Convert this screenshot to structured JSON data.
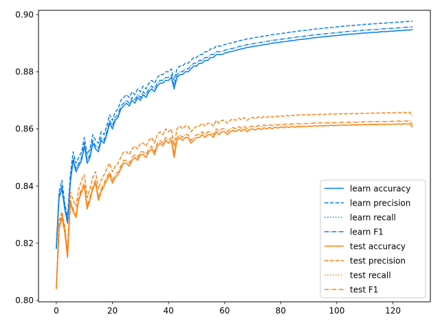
{
  "chart_data": {
    "type": "line",
    "title": "",
    "xlabel": "",
    "ylabel": "",
    "xlim": [
      -6.35,
      133.35
    ],
    "ylim": [
      0.7995,
      0.9015
    ],
    "xticks": [
      0,
      20,
      40,
      60,
      80,
      100,
      120
    ],
    "yticks": [
      0.8,
      0.82,
      0.84,
      0.86,
      0.88,
      0.9
    ],
    "xtick_labels": [
      "0",
      "20",
      "40",
      "60",
      "80",
      "100",
      "120"
    ],
    "ytick_labels": [
      "0.80",
      "0.82",
      "0.84",
      "0.86",
      "0.88",
      "0.90"
    ],
    "grid": false,
    "legend_position": "lower-right",
    "x": {
      "start": 0,
      "end": 127,
      "step": 1
    },
    "series": [
      {
        "name": "learn accuracy",
        "color": "#0a7ff0",
        "dash": "solid",
        "values": [
          0.818,
          0.836,
          0.839,
          0.832,
          0.827,
          0.841,
          0.849,
          0.845,
          0.847,
          0.849,
          0.854,
          0.848,
          0.85,
          0.855,
          0.853,
          0.852,
          0.856,
          0.855,
          0.858,
          0.862,
          0.86,
          0.863,
          0.864,
          0.867,
          0.868,
          0.869,
          0.868,
          0.87,
          0.869,
          0.871,
          0.87,
          0.872,
          0.871,
          0.873,
          0.874,
          0.873,
          0.875,
          0.876,
          0.876,
          0.877,
          0.877,
          0.878,
          0.874,
          0.878,
          0.879,
          0.879,
          0.88,
          0.88,
          0.881,
          0.882,
          0.882,
          0.883,
          0.883,
          0.884,
          0.884,
          0.885,
          0.885,
          0.886,
          0.886,
          0.886,
          0.8865,
          0.8868,
          0.887,
          0.8872,
          0.8875,
          0.8878,
          0.888,
          0.8882,
          0.8885,
          0.8886,
          0.8888,
          0.889,
          0.8891,
          0.8893,
          0.8895,
          0.8896,
          0.8898,
          0.89,
          0.8901,
          0.8902,
          0.8904,
          0.8905,
          0.8906,
          0.8908,
          0.8909,
          0.891,
          0.8912,
          0.8913,
          0.8914,
          0.8915,
          0.8916,
          0.8918,
          0.8919,
          0.892,
          0.8921,
          0.8922,
          0.8923,
          0.8924,
          0.8925,
          0.8926,
          0.8927,
          0.8928,
          0.8929,
          0.893,
          0.8931,
          0.8932,
          0.8932,
          0.8933,
          0.8934,
          0.8935,
          0.8936,
          0.8936,
          0.8937,
          0.8938,
          0.8938,
          0.8939,
          0.894,
          0.894,
          0.8941,
          0.8942,
          0.8942,
          0.8943,
          0.8944,
          0.8944,
          0.8945,
          0.8946,
          0.8946,
          0.8947
        ]
      },
      {
        "name": "learn precision",
        "color": "#0a7ff0",
        "dash": "dashed",
        "values": [
          0.819,
          0.838,
          0.842,
          0.834,
          0.829,
          0.844,
          0.852,
          0.848,
          0.85,
          0.852,
          0.857,
          0.851,
          0.853,
          0.858,
          0.856,
          0.855,
          0.859,
          0.858,
          0.861,
          0.865,
          0.863,
          0.866,
          0.867,
          0.87,
          0.871,
          0.872,
          0.871,
          0.873,
          0.872,
          0.874,
          0.873,
          0.875,
          0.874,
          0.876,
          0.877,
          0.876,
          0.878,
          0.879,
          0.879,
          0.88,
          0.88,
          0.881,
          0.877,
          0.881,
          0.882,
          0.882,
          0.883,
          0.883,
          0.884,
          0.885,
          0.885,
          0.886,
          0.886,
          0.887,
          0.887,
          0.888,
          0.888,
          0.889,
          0.889,
          0.889,
          0.8895,
          0.8898,
          0.89,
          0.8902,
          0.8905,
          0.8908,
          0.891,
          0.8912,
          0.8915,
          0.8916,
          0.8918,
          0.892,
          0.8921,
          0.8923,
          0.8925,
          0.8926,
          0.8928,
          0.893,
          0.8931,
          0.8932,
          0.8934,
          0.8935,
          0.8936,
          0.8938,
          0.8939,
          0.894,
          0.8942,
          0.8943,
          0.8944,
          0.8945,
          0.8946,
          0.8948,
          0.8949,
          0.895,
          0.8951,
          0.8952,
          0.8953,
          0.8954,
          0.8955,
          0.8956,
          0.8957,
          0.8958,
          0.8959,
          0.896,
          0.8961,
          0.8962,
          0.8962,
          0.8963,
          0.8964,
          0.8965,
          0.8966,
          0.8966,
          0.8967,
          0.8968,
          0.8968,
          0.8969,
          0.897,
          0.897,
          0.8971,
          0.8972,
          0.8972,
          0.8973,
          0.8974,
          0.8974,
          0.8975,
          0.8976,
          0.8976,
          0.8977
        ]
      },
      {
        "name": "learn recall",
        "color": "#0a7ff0",
        "dash": "dotted",
        "values": [
          0.818,
          0.836,
          0.839,
          0.832,
          0.827,
          0.841,
          0.849,
          0.845,
          0.847,
          0.849,
          0.854,
          0.848,
          0.85,
          0.855,
          0.853,
          0.852,
          0.856,
          0.855,
          0.858,
          0.862,
          0.86,
          0.863,
          0.864,
          0.867,
          0.868,
          0.869,
          0.868,
          0.87,
          0.869,
          0.871,
          0.87,
          0.872,
          0.871,
          0.873,
          0.874,
          0.873,
          0.875,
          0.876,
          0.876,
          0.877,
          0.877,
          0.878,
          0.874,
          0.878,
          0.879,
          0.879,
          0.88,
          0.88,
          0.881,
          0.882,
          0.882,
          0.883,
          0.883,
          0.884,
          0.884,
          0.885,
          0.885,
          0.886,
          0.886,
          0.886,
          0.8865,
          0.8868,
          0.887,
          0.8872,
          0.8875,
          0.8878,
          0.888,
          0.8882,
          0.8885,
          0.8886,
          0.8888,
          0.889,
          0.8891,
          0.8893,
          0.8895,
          0.8896,
          0.8898,
          0.89,
          0.8901,
          0.8902,
          0.8904,
          0.8905,
          0.8906,
          0.8908,
          0.8909,
          0.891,
          0.8912,
          0.8913,
          0.8914,
          0.8915,
          0.8916,
          0.8918,
          0.8919,
          0.892,
          0.8921,
          0.8922,
          0.8923,
          0.8924,
          0.8925,
          0.8926,
          0.8927,
          0.8928,
          0.8929,
          0.893,
          0.8931,
          0.8932,
          0.8932,
          0.8933,
          0.8934,
          0.8935,
          0.8936,
          0.8936,
          0.8937,
          0.8938,
          0.8938,
          0.8939,
          0.894,
          0.894,
          0.8941,
          0.8942,
          0.8942,
          0.8943,
          0.8944,
          0.8944,
          0.8945,
          0.8946,
          0.8946,
          0.8947
        ]
      },
      {
        "name": "learn F1",
        "color": "#0a7ff0",
        "dash": "dashdot",
        "values": [
          0.8185,
          0.837,
          0.84,
          0.833,
          0.828,
          0.842,
          0.85,
          0.846,
          0.848,
          0.85,
          0.855,
          0.849,
          0.851,
          0.856,
          0.854,
          0.853,
          0.857,
          0.856,
          0.859,
          0.863,
          0.861,
          0.864,
          0.865,
          0.868,
          0.869,
          0.87,
          0.869,
          0.871,
          0.87,
          0.872,
          0.871,
          0.873,
          0.872,
          0.874,
          0.875,
          0.874,
          0.876,
          0.877,
          0.877,
          0.878,
          0.878,
          0.879,
          0.875,
          0.879,
          0.88,
          0.88,
          0.881,
          0.881,
          0.882,
          0.883,
          0.883,
          0.884,
          0.884,
          0.885,
          0.885,
          0.886,
          0.886,
          0.887,
          0.887,
          0.887,
          0.8875,
          0.8878,
          0.888,
          0.8882,
          0.8885,
          0.8888,
          0.889,
          0.8892,
          0.8895,
          0.8896,
          0.8898,
          0.89,
          0.8901,
          0.8903,
          0.8905,
          0.8906,
          0.8908,
          0.891,
          0.8911,
          0.8912,
          0.8914,
          0.8915,
          0.8916,
          0.8918,
          0.8919,
          0.892,
          0.8922,
          0.8923,
          0.8924,
          0.8925,
          0.8926,
          0.8928,
          0.8929,
          0.893,
          0.8931,
          0.8932,
          0.8933,
          0.8934,
          0.8935,
          0.8936,
          0.8937,
          0.8938,
          0.8939,
          0.894,
          0.8941,
          0.8942,
          0.8942,
          0.8943,
          0.8944,
          0.8945,
          0.8946,
          0.8946,
          0.8947,
          0.8948,
          0.8948,
          0.8949,
          0.895,
          0.895,
          0.8951,
          0.8952,
          0.8952,
          0.8953,
          0.8954,
          0.8954,
          0.8955,
          0.8956,
          0.8956,
          0.8957
        ]
      },
      {
        "name": "test accuracy",
        "color": "#ff7f0e",
        "dash": "solid",
        "values": [
          0.804,
          0.825,
          0.829,
          0.824,
          0.815,
          0.834,
          0.831,
          0.829,
          0.835,
          0.838,
          0.84,
          0.832,
          0.835,
          0.839,
          0.841,
          0.835,
          0.838,
          0.84,
          0.842,
          0.844,
          0.841,
          0.843,
          0.844,
          0.846,
          0.848,
          0.848,
          0.847,
          0.849,
          0.85,
          0.849,
          0.851,
          0.851,
          0.85,
          0.852,
          0.853,
          0.851,
          0.854,
          0.855,
          0.854,
          0.856,
          0.855,
          0.856,
          0.85,
          0.856,
          0.857,
          0.856,
          0.857,
          0.857,
          0.855,
          0.856,
          0.857,
          0.857,
          0.858,
          0.857,
          0.858,
          0.858,
          0.857,
          0.859,
          0.858,
          0.859,
          0.859,
          0.858,
          0.859,
          0.8595,
          0.859,
          0.8598,
          0.8592,
          0.86,
          0.859,
          0.8598,
          0.86,
          0.8596,
          0.8602,
          0.8598,
          0.8604,
          0.86,
          0.8605,
          0.8601,
          0.8606,
          0.8603,
          0.8607,
          0.8604,
          0.8608,
          0.8605,
          0.8608,
          0.8606,
          0.8609,
          0.8607,
          0.861,
          0.8608,
          0.861,
          0.8609,
          0.8611,
          0.8609,
          0.8612,
          0.861,
          0.8612,
          0.8611,
          0.8613,
          0.8611,
          0.8613,
          0.8612,
          0.8614,
          0.8612,
          0.8614,
          0.8613,
          0.8615,
          0.8613,
          0.8615,
          0.8614,
          0.8616,
          0.8614,
          0.8616,
          0.8615,
          0.8616,
          0.8615,
          0.8617,
          0.8615,
          0.8617,
          0.8616,
          0.8617,
          0.8616,
          0.8618,
          0.8616,
          0.8618,
          0.8617,
          0.8618,
          0.8605
        ]
      },
      {
        "name": "test precision",
        "color": "#ff7f0e",
        "dash": "dashed",
        "values": [
          0.805,
          0.828,
          0.831,
          0.826,
          0.817,
          0.838,
          0.835,
          0.833,
          0.839,
          0.842,
          0.844,
          0.836,
          0.839,
          0.843,
          0.845,
          0.839,
          0.842,
          0.844,
          0.846,
          0.848,
          0.845,
          0.847,
          0.848,
          0.85,
          0.852,
          0.852,
          0.851,
          0.853,
          0.854,
          0.853,
          0.855,
          0.855,
          0.854,
          0.856,
          0.857,
          0.855,
          0.858,
          0.859,
          0.858,
          0.86,
          0.859,
          0.86,
          0.854,
          0.86,
          0.861,
          0.86,
          0.861,
          0.861,
          0.859,
          0.86,
          0.861,
          0.861,
          0.862,
          0.861,
          0.862,
          0.862,
          0.861,
          0.863,
          0.862,
          0.863,
          0.863,
          0.862,
          0.863,
          0.8635,
          0.863,
          0.8638,
          0.8632,
          0.864,
          0.863,
          0.8638,
          0.864,
          0.8636,
          0.8642,
          0.8638,
          0.8644,
          0.864,
          0.8645,
          0.8641,
          0.8646,
          0.8643,
          0.8647,
          0.8644,
          0.8648,
          0.8645,
          0.8648,
          0.8646,
          0.8649,
          0.8647,
          0.865,
          0.8648,
          0.865,
          0.8649,
          0.8651,
          0.8649,
          0.8652,
          0.865,
          0.8652,
          0.8651,
          0.8653,
          0.8651,
          0.8653,
          0.8652,
          0.8654,
          0.8652,
          0.8654,
          0.8653,
          0.8655,
          0.8653,
          0.8655,
          0.8654,
          0.8656,
          0.8654,
          0.8656,
          0.8655,
          0.8656,
          0.8655,
          0.8657,
          0.8655,
          0.8657,
          0.8656,
          0.8657,
          0.8656,
          0.8658,
          0.8656,
          0.8658,
          0.8657,
          0.8658,
          0.8645
        ]
      },
      {
        "name": "test recall",
        "color": "#ff7f0e",
        "dash": "dotted",
        "values": [
          0.804,
          0.825,
          0.829,
          0.824,
          0.815,
          0.834,
          0.831,
          0.829,
          0.835,
          0.838,
          0.84,
          0.832,
          0.835,
          0.839,
          0.841,
          0.835,
          0.838,
          0.84,
          0.842,
          0.844,
          0.841,
          0.843,
          0.844,
          0.846,
          0.848,
          0.848,
          0.847,
          0.849,
          0.85,
          0.849,
          0.851,
          0.851,
          0.85,
          0.852,
          0.853,
          0.851,
          0.854,
          0.855,
          0.854,
          0.856,
          0.855,
          0.856,
          0.85,
          0.856,
          0.857,
          0.856,
          0.857,
          0.857,
          0.855,
          0.856,
          0.857,
          0.857,
          0.858,
          0.857,
          0.858,
          0.858,
          0.857,
          0.859,
          0.858,
          0.859,
          0.859,
          0.858,
          0.859,
          0.8595,
          0.859,
          0.8598,
          0.8592,
          0.86,
          0.859,
          0.8598,
          0.86,
          0.8596,
          0.8602,
          0.8598,
          0.8604,
          0.86,
          0.8605,
          0.8601,
          0.8606,
          0.8603,
          0.8607,
          0.8604,
          0.8608,
          0.8605,
          0.8608,
          0.8606,
          0.8609,
          0.8607,
          0.861,
          0.8608,
          0.861,
          0.8609,
          0.8611,
          0.8609,
          0.8612,
          0.861,
          0.8612,
          0.8611,
          0.8613,
          0.8611,
          0.8613,
          0.8612,
          0.8614,
          0.8612,
          0.8614,
          0.8613,
          0.8615,
          0.8613,
          0.8615,
          0.8614,
          0.8616,
          0.8614,
          0.8616,
          0.8615,
          0.8616,
          0.8615,
          0.8617,
          0.8615,
          0.8617,
          0.8616,
          0.8617,
          0.8616,
          0.8618,
          0.8616,
          0.8618,
          0.8617,
          0.8618,
          0.8605
        ]
      },
      {
        "name": "test F1",
        "color": "#ff7f0e",
        "dash": "dashdot",
        "values": [
          0.8045,
          0.826,
          0.83,
          0.825,
          0.816,
          0.835,
          0.832,
          0.83,
          0.836,
          0.839,
          0.841,
          0.833,
          0.836,
          0.84,
          0.842,
          0.836,
          0.839,
          0.841,
          0.843,
          0.845,
          0.842,
          0.844,
          0.845,
          0.847,
          0.849,
          0.849,
          0.848,
          0.85,
          0.851,
          0.85,
          0.852,
          0.852,
          0.851,
          0.853,
          0.854,
          0.852,
          0.855,
          0.856,
          0.855,
          0.857,
          0.856,
          0.857,
          0.851,
          0.857,
          0.858,
          0.857,
          0.858,
          0.858,
          0.856,
          0.857,
          0.858,
          0.858,
          0.859,
          0.858,
          0.859,
          0.859,
          0.858,
          0.86,
          0.859,
          0.86,
          0.86,
          0.859,
          0.86,
          0.8605,
          0.86,
          0.8608,
          0.8602,
          0.861,
          0.86,
          0.8608,
          0.861,
          0.8606,
          0.8612,
          0.8608,
          0.8614,
          0.861,
          0.8615,
          0.8611,
          0.8616,
          0.8613,
          0.8617,
          0.8614,
          0.8618,
          0.8615,
          0.8618,
          0.8616,
          0.8619,
          0.8617,
          0.862,
          0.8618,
          0.862,
          0.8619,
          0.8621,
          0.8619,
          0.8622,
          0.862,
          0.8622,
          0.8621,
          0.8623,
          0.8621,
          0.8623,
          0.8622,
          0.8624,
          0.8622,
          0.8624,
          0.8623,
          0.8625,
          0.8623,
          0.8625,
          0.8624,
          0.8626,
          0.8624,
          0.8626,
          0.8625,
          0.8626,
          0.8625,
          0.8627,
          0.8625,
          0.8627,
          0.8626,
          0.8627,
          0.8626,
          0.8628,
          0.8626,
          0.8628,
          0.8627,
          0.8628,
          0.8615
        ]
      }
    ]
  }
}
